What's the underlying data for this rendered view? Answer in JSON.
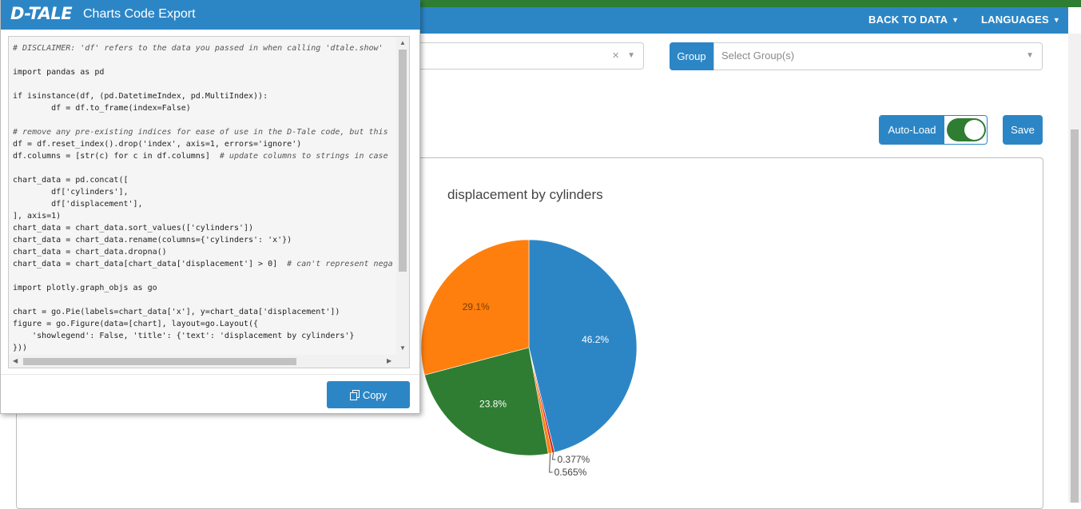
{
  "navbar": {
    "back_to_data": "BACK TO DATA",
    "languages": "LANGUAGES"
  },
  "group": {
    "button_label": "Group",
    "placeholder": "Select Group(s)"
  },
  "controls": {
    "auto_load_label": "Auto-Load",
    "auto_load_on": true,
    "save_label": "Save"
  },
  "modal": {
    "logo": "D-TALE",
    "title": "Charts Code Export",
    "copy_label": "Copy",
    "code_lines": [
      {
        "t": "c",
        "v": "# DISCLAIMER: 'df' refers to the data you passed in when calling 'dtale.show'"
      },
      {
        "t": "p",
        "v": ""
      },
      {
        "t": "p",
        "v": "import pandas as pd"
      },
      {
        "t": "p",
        "v": ""
      },
      {
        "t": "p",
        "v": "if isinstance(df, (pd.DatetimeIndex, pd.MultiIndex)):"
      },
      {
        "t": "p",
        "v": "        df = df.to_frame(index=False)"
      },
      {
        "t": "p",
        "v": ""
      },
      {
        "t": "c",
        "v": "# remove any pre-existing indices for ease of use in the D-Tale code, but this"
      },
      {
        "t": "p",
        "v": "df = df.reset_index().drop('index', axis=1, errors='ignore')"
      },
      {
        "t": "m",
        "v": "df.columns = [str(c) for c in df.columns]",
        "c": "  # update columns to strings in case"
      },
      {
        "t": "p",
        "v": ""
      },
      {
        "t": "p",
        "v": "chart_data = pd.concat(["
      },
      {
        "t": "p",
        "v": "        df['cylinders'],"
      },
      {
        "t": "p",
        "v": "        df['displacement'],"
      },
      {
        "t": "p",
        "v": "], axis=1)"
      },
      {
        "t": "p",
        "v": "chart_data = chart_data.sort_values(['cylinders'])"
      },
      {
        "t": "p",
        "v": "chart_data = chart_data.rename(columns={'cylinders': 'x'})"
      },
      {
        "t": "p",
        "v": "chart_data = chart_data.dropna()"
      },
      {
        "t": "m",
        "v": "chart_data = chart_data[chart_data['displacement'] > 0]",
        "c": "  # can't represent nega"
      },
      {
        "t": "p",
        "v": ""
      },
      {
        "t": "p",
        "v": "import plotly.graph_objs as go"
      },
      {
        "t": "p",
        "v": ""
      },
      {
        "t": "p",
        "v": "chart = go.Pie(labels=chart_data['x'], y=chart_data['displacement'])"
      },
      {
        "t": "p",
        "v": "figure = go.Figure(data=[chart], layout=go.Layout({"
      },
      {
        "t": "p",
        "v": "    'showlegend': False, 'title': {'text': 'displacement by cylinders'}"
      },
      {
        "t": "p",
        "v": "}))"
      }
    ]
  },
  "chart_data": {
    "type": "pie",
    "title": "displacement by cylinders",
    "slices": [
      {
        "label": "46.2%",
        "value": 46.2,
        "color": "#2c86c6"
      },
      {
        "label": "0.377%",
        "value": 0.377,
        "color": "#d62728"
      },
      {
        "label": "0.565%",
        "value": 0.565,
        "color": "#ff7f0e"
      },
      {
        "label": "23.8%",
        "value": 23.8,
        "color": "#2e7d32"
      },
      {
        "label": "29.1%",
        "value": 29.1,
        "color": "#ff7f0e"
      }
    ]
  }
}
